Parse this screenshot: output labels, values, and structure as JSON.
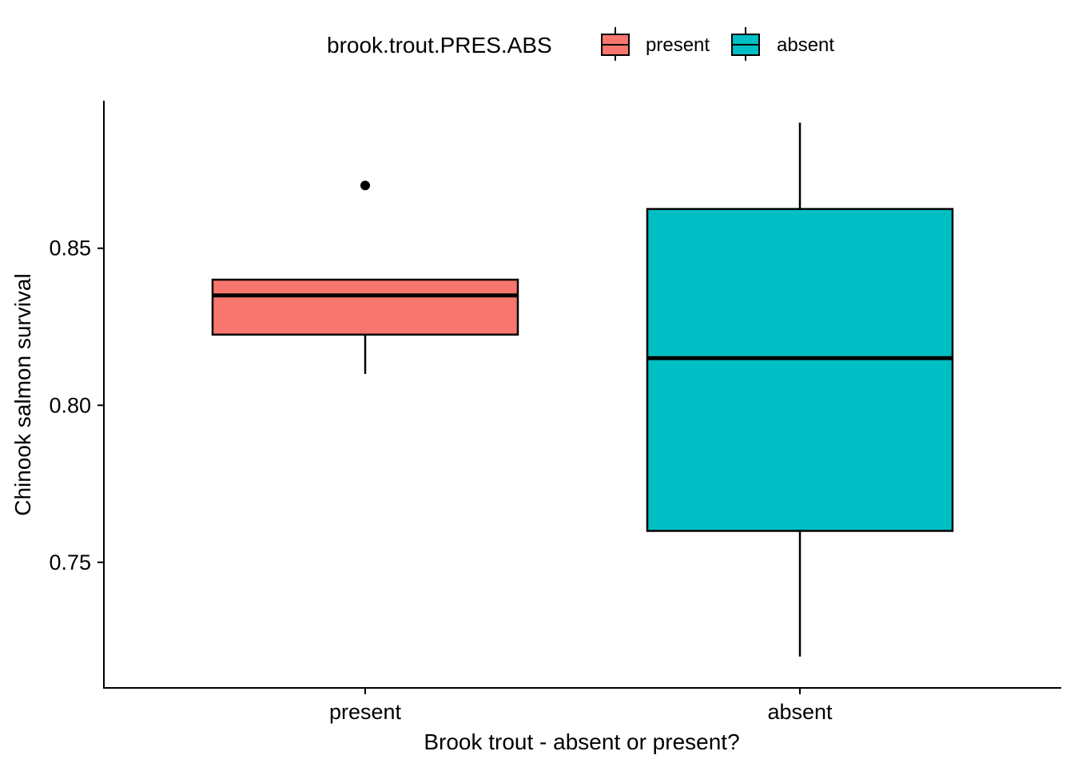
{
  "chart_data": {
    "type": "box",
    "title": "",
    "xlabel": "Brook trout - absent or present?",
    "ylabel": "Chinook salmon survival",
    "ylim": [
      0.71,
      0.897
    ],
    "yticks": [
      0.75,
      0.8,
      0.85
    ],
    "ytick_labels": [
      "0.75",
      "0.80",
      "0.85"
    ],
    "grid": false,
    "legend": {
      "position": "top",
      "title": "brook.trout.PRES.ABS",
      "entries": [
        {
          "label": "present",
          "color": "#F8766D"
        },
        {
          "label": "absent",
          "color": "#00BFC4"
        }
      ]
    },
    "categories": [
      "present",
      "absent"
    ],
    "boxes": [
      {
        "category": "present",
        "color": "#F8766D",
        "whisker_low": 0.81,
        "q1": 0.8225,
        "median": 0.835,
        "q3": 0.84,
        "whisker_high": 0.84,
        "outliers": [
          0.87
        ]
      },
      {
        "category": "absent",
        "color": "#00BFC4",
        "whisker_low": 0.72,
        "q1": 0.76,
        "median": 0.815,
        "q3": 0.8625,
        "whisker_high": 0.89,
        "outliers": []
      }
    ]
  }
}
